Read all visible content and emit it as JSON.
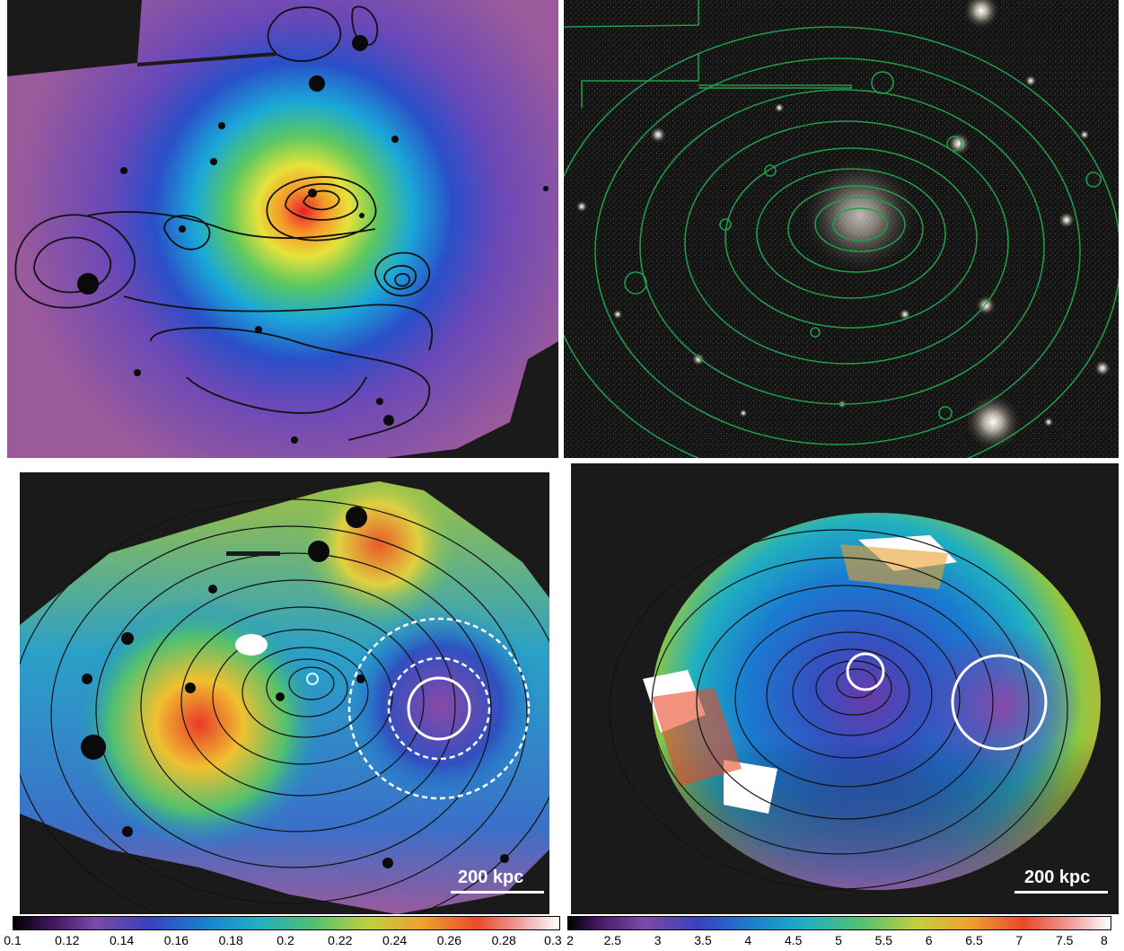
{
  "panels": {
    "top_left": {
      "name": "temperature-map-smooth"
    },
    "top_right": {
      "name": "optical-image-contours"
    },
    "bottom_left": {
      "name": "abundance-map",
      "scale_label": "200 kpc"
    },
    "bottom_right": {
      "name": "temperature-map-binned",
      "scale_label": "200 kpc"
    }
  },
  "colorbars": {
    "left": {
      "ticks": [
        "0.1",
        "0.12",
        "0.14",
        "0.16",
        "0.18",
        "0.2",
        "0.22",
        "0.24",
        "0.26",
        "0.28",
        "0.3"
      ]
    },
    "right": {
      "ticks": [
        "2",
        "2.5",
        "3",
        "3.5",
        "4",
        "4.5",
        "5",
        "5.5",
        "6",
        "6.5",
        "7",
        "7.5",
        "8"
      ]
    }
  },
  "colors": {
    "background": "#1a1a1a",
    "contour_dark": "#111111",
    "contour_green": "#1fa04a",
    "circle": "#ffffff"
  }
}
